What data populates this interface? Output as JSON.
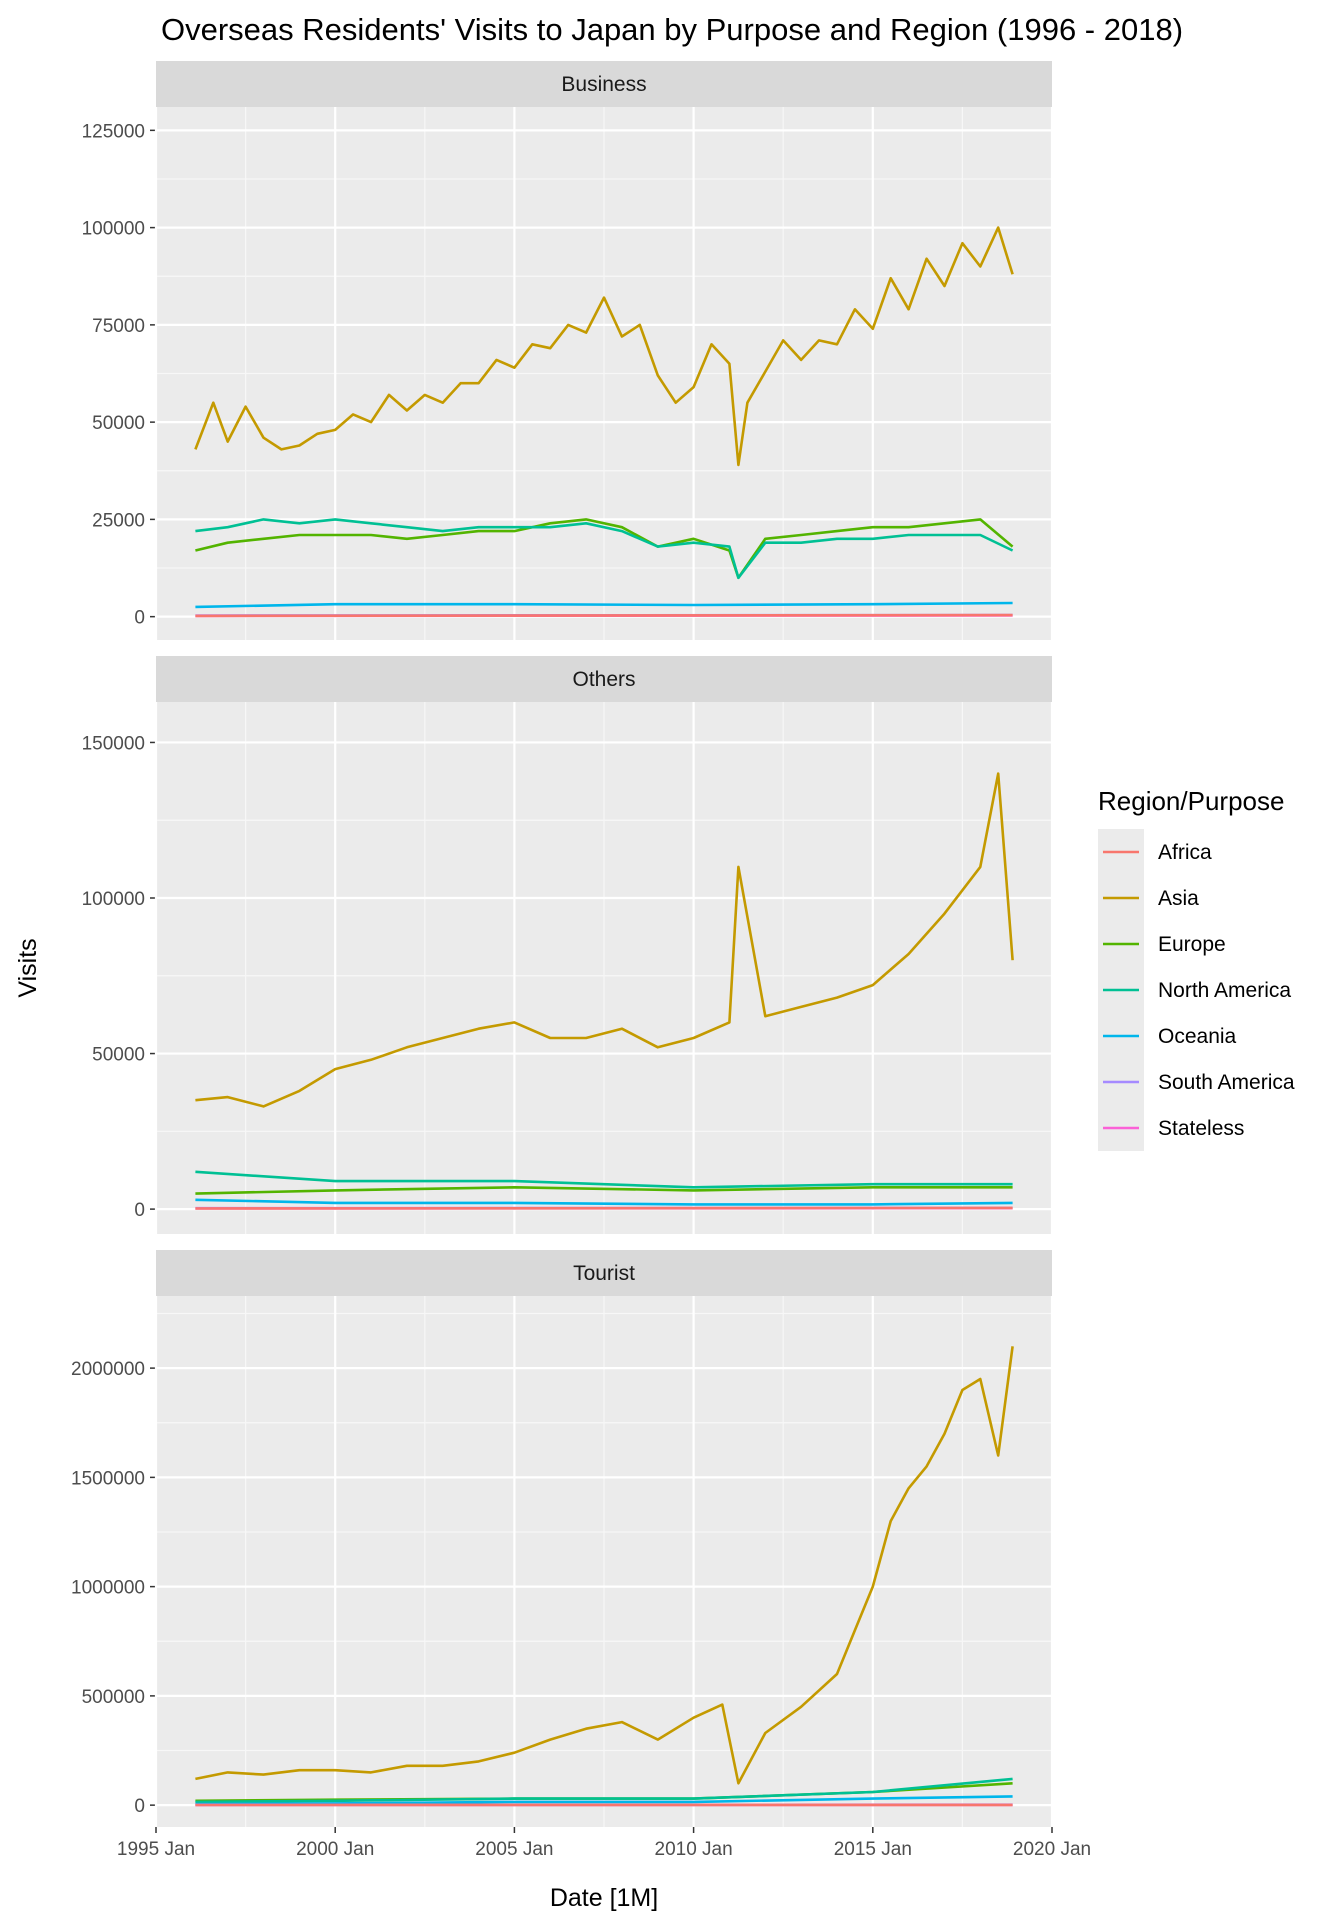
{
  "chart_data": {
    "type": "line",
    "title": "Overseas Residents' Visits to Japan by Purpose and Region (1996 - 2018)",
    "xlabel": "Date [1M]",
    "ylabel": "Visits",
    "x_range": [
      "1995-01",
      "2020-01"
    ],
    "x_ticks": [
      "1995 Jan",
      "2000 Jan",
      "2005 Jan",
      "2010 Jan",
      "2015 Jan",
      "2020 Jan"
    ],
    "legend": {
      "title": "Region/Purpose",
      "position": "right",
      "entries": [
        {
          "name": "Africa",
          "color": "#F8766D"
        },
        {
          "name": "Asia",
          "color": "#C49A00"
        },
        {
          "name": "Europe",
          "color": "#53B400"
        },
        {
          "name": "North America",
          "color": "#00C094"
        },
        {
          "name": "Oceania",
          "color": "#00B6EB"
        },
        {
          "name": "South America",
          "color": "#A58AFF"
        },
        {
          "name": "Stateless",
          "color": "#FB61D7"
        }
      ]
    },
    "grid": true,
    "facets": [
      {
        "name": "Business",
        "ylim": [
          -6000,
          131000
        ],
        "y_ticks": [
          0,
          25000,
          50000,
          75000,
          100000,
          125000
        ],
        "y_tick_labels": [
          "0",
          "25000",
          "50000",
          "75000",
          "100000",
          "125000"
        ],
        "series": [
          {
            "name": "Asia",
            "x": [
              1996.1,
              1996.6,
              1997,
              1997.5,
              1998,
              1998.5,
              1999,
              1999.5,
              2000,
              2000.5,
              2001,
              2001.5,
              2002,
              2002.5,
              2003,
              2003.5,
              2004,
              2004.5,
              2005,
              2005.5,
              2006,
              2006.5,
              2007,
              2007.5,
              2008,
              2008.5,
              2009,
              2009.5,
              2010,
              2010.5,
              2011,
              2011.25,
              2011.5,
              2012,
              2012.5,
              2013,
              2013.5,
              2014,
              2014.5,
              2015,
              2015.5,
              2016,
              2016.5,
              2017,
              2017.5,
              2018,
              2018.5,
              2018.9
            ],
            "values": [
              43000,
              55000,
              45000,
              54000,
              46000,
              43000,
              44000,
              47000,
              48000,
              52000,
              50000,
              57000,
              53000,
              57000,
              55000,
              60000,
              60000,
              66000,
              64000,
              70000,
              69000,
              75000,
              73000,
              82000,
              72000,
              75000,
              62000,
              55000,
              59000,
              70000,
              65000,
              39000,
              55000,
              63000,
              71000,
              66000,
              71000,
              70000,
              79000,
              74000,
              87000,
              79000,
              92000,
              85000,
              96000,
              90000,
              100000,
              88000
            ]
          },
          {
            "name": "Europe",
            "x": [
              1996.1,
              1997,
              1998,
              1999,
              2000,
              2001,
              2002,
              2003,
              2004,
              2005,
              2006,
              2007,
              2008,
              2009,
              2010,
              2011,
              2011.25,
              2012,
              2013,
              2014,
              2015,
              2016,
              2017,
              2018,
              2018.9
            ],
            "values": [
              17000,
              19000,
              20000,
              21000,
              21000,
              21000,
              20000,
              21000,
              22000,
              22000,
              24000,
              25000,
              23000,
              18000,
              20000,
              17000,
              10000,
              20000,
              21000,
              22000,
              23000,
              23000,
              24000,
              25000,
              18000
            ]
          },
          {
            "name": "North America",
            "x": [
              1996.1,
              1997,
              1998,
              1999,
              2000,
              2001,
              2002,
              2003,
              2004,
              2005,
              2006,
              2007,
              2008,
              2009,
              2010,
              2011,
              2011.25,
              2012,
              2013,
              2014,
              2015,
              2016,
              2017,
              2018,
              2018.9
            ],
            "values": [
              22000,
              23000,
              25000,
              24000,
              25000,
              24000,
              23000,
              22000,
              23000,
              23000,
              23000,
              24000,
              22000,
              18000,
              19000,
              18000,
              10000,
              19000,
              19000,
              20000,
              20000,
              21000,
              21000,
              21000,
              17000
            ]
          },
          {
            "name": "Oceania",
            "x": [
              1996.1,
              2000,
              2005,
              2010,
              2015,
              2018.9
            ],
            "values": [
              2500,
              3200,
              3200,
              3000,
              3200,
              3500
            ]
          },
          {
            "name": "South America",
            "x": [
              1996.1,
              2018.9
            ],
            "values": [
              300,
              400
            ]
          },
          {
            "name": "Stateless",
            "x": [
              1996.1,
              2018.9
            ],
            "values": [
              200,
              300
            ]
          },
          {
            "name": "Africa",
            "x": [
              1996.1,
              2018.9
            ],
            "values": [
              200,
              400
            ]
          }
        ]
      },
      {
        "name": "Others",
        "ylim": [
          -8000,
          163000
        ],
        "y_ticks": [
          0,
          50000,
          100000,
          150000
        ],
        "y_tick_labels": [
          "0",
          "50000",
          "100000",
          "150000"
        ],
        "series": [
          {
            "name": "Asia",
            "x": [
              1996.1,
              1997,
              1998,
              1999,
              2000,
              2001,
              2002,
              2003,
              2004,
              2005,
              2006,
              2007,
              2008,
              2009,
              2010,
              2011,
              2011.25,
              2012,
              2013,
              2014,
              2015,
              2016,
              2017,
              2018,
              2018.5,
              2018.9
            ],
            "values": [
              35000,
              36000,
              33000,
              38000,
              45000,
              48000,
              52000,
              55000,
              58000,
              60000,
              55000,
              55000,
              58000,
              52000,
              55000,
              60000,
              110000,
              62000,
              65000,
              68000,
              72000,
              82000,
              95000,
              110000,
              140000,
              80000
            ]
          },
          {
            "name": "Europe",
            "x": [
              1996.1,
              2000,
              2005,
              2010,
              2015,
              2018.9
            ],
            "values": [
              5000,
              6000,
              7000,
              6000,
              7000,
              7000
            ]
          },
          {
            "name": "North America",
            "x": [
              1996.1,
              2000,
              2005,
              2010,
              2015,
              2018.9
            ],
            "values": [
              12000,
              9000,
              9000,
              7000,
              8000,
              8000
            ]
          },
          {
            "name": "Oceania",
            "x": [
              1996.1,
              2000,
              2005,
              2010,
              2015,
              2018.9
            ],
            "values": [
              3000,
              2000,
              2000,
              1500,
              1500,
              2000
            ]
          },
          {
            "name": "South America",
            "x": [
              1996.1,
              2018.9
            ],
            "values": [
              300,
              400
            ]
          },
          {
            "name": "Stateless",
            "x": [
              1996.1,
              2018.9
            ],
            "values": [
              200,
              300
            ]
          },
          {
            "name": "Africa",
            "x": [
              1996.1,
              2018.9
            ],
            "values": [
              200,
              400
            ]
          }
        ]
      },
      {
        "name": "Tourist",
        "ylim": [
          -100000,
          2330000
        ],
        "y_ticks": [
          0,
          500000,
          1000000,
          1500000,
          2000000
        ],
        "y_tick_labels": [
          "0",
          "500000",
          "1000000",
          "1500000",
          "2000000"
        ],
        "series": [
          {
            "name": "Asia",
            "x": [
              1996.1,
              1997,
              1998,
              1999,
              2000,
              2001,
              2002,
              2003,
              2004,
              2005,
              2006,
              2007,
              2008,
              2009,
              2010,
              2010.8,
              2011.25,
              2012,
              2013,
              2014,
              2014.5,
              2015,
              2015.5,
              2016,
              2016.5,
              2017,
              2017.5,
              2018,
              2018.5,
              2018.9
            ],
            "values": [
              120000,
              150000,
              140000,
              160000,
              160000,
              150000,
              180000,
              180000,
              200000,
              240000,
              300000,
              350000,
              380000,
              300000,
              400000,
              460000,
              100000,
              330000,
              450000,
              600000,
              800000,
              1000000,
              1300000,
              1450000,
              1550000,
              1700000,
              1900000,
              1950000,
              1600000,
              2100000
            ]
          },
          {
            "name": "Europe",
            "x": [
              1996.1,
              2000,
              2005,
              2010,
              2015,
              2018.9
            ],
            "values": [
              20000,
              25000,
              30000,
              30000,
              60000,
              100000
            ]
          },
          {
            "name": "North America",
            "x": [
              1996.1,
              2000,
              2005,
              2010,
              2015,
              2018.9
            ],
            "values": [
              15000,
              20000,
              30000,
              30000,
              60000,
              120000
            ]
          },
          {
            "name": "Oceania",
            "x": [
              1996.1,
              2000,
              2005,
              2010,
              2015,
              2018.9
            ],
            "values": [
              5000,
              8000,
              15000,
              15000,
              30000,
              40000
            ]
          },
          {
            "name": "South America",
            "x": [
              1996.1,
              2018.9
            ],
            "values": [
              1000,
              2000
            ]
          },
          {
            "name": "Stateless",
            "x": [
              1996.1,
              2018.9
            ],
            "values": [
              500,
              1000
            ]
          },
          {
            "name": "Africa",
            "x": [
              1996.1,
              2018.9
            ],
            "values": [
              500,
              1000
            ]
          }
        ]
      }
    ]
  }
}
